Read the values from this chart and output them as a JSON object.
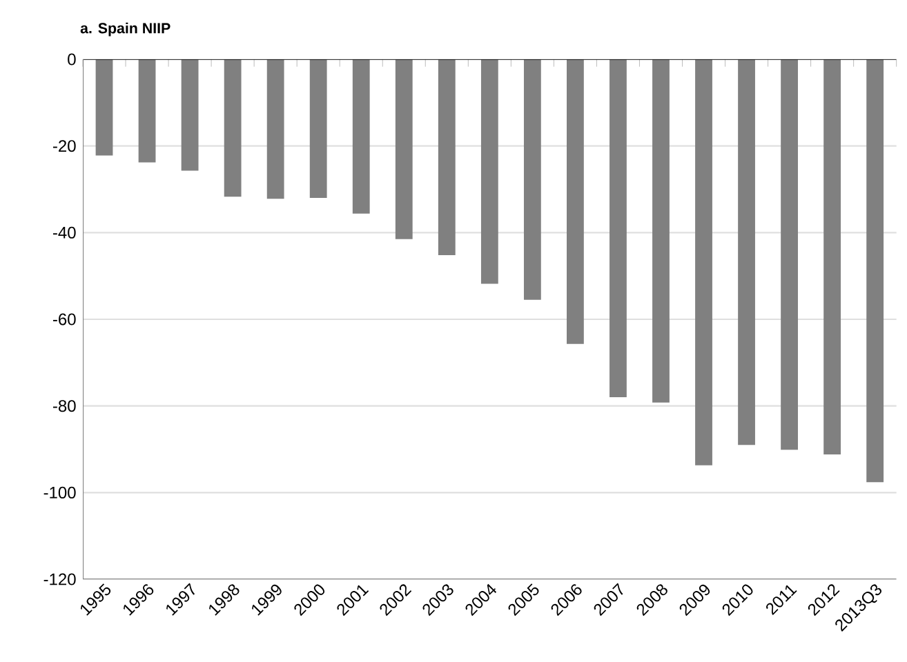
{
  "chart_data": {
    "type": "bar",
    "title": "a. Spain NIIP",
    "categories": [
      "1995",
      "1996",
      "1997",
      "1998",
      "1999",
      "2000",
      "2001",
      "2002",
      "2003",
      "2004",
      "2005",
      "2006",
      "2007",
      "2008",
      "2009",
      "2010",
      "2011",
      "2012",
      "2013Q3"
    ],
    "values": [
      -22.2,
      -23.8,
      -25.7,
      -31.7,
      -32.2,
      -32.0,
      -35.6,
      -41.5,
      -45.2,
      -51.8,
      -55.5,
      -65.7,
      -78.0,
      -79.2,
      -93.7,
      -89.0,
      -90.1,
      -91.2,
      -97.6
    ],
    "color": "#808080",
    "ylim": [
      -120,
      0
    ],
    "yticks": [
      -120,
      -100,
      -80,
      -60,
      -40,
      -20,
      0
    ],
    "grid": "y"
  }
}
